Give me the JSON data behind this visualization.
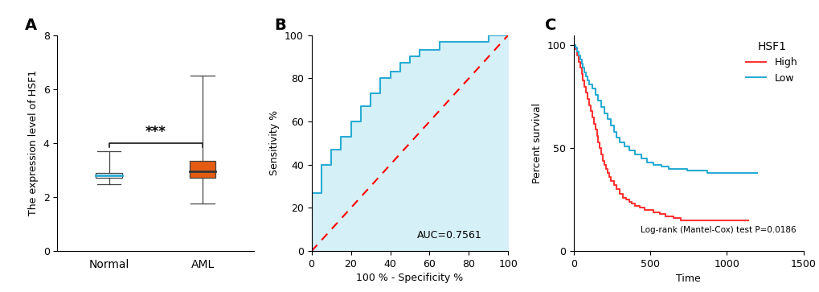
{
  "panel_a": {
    "label": "A",
    "ylabel": "The expression level of HSF1",
    "categories": [
      "Normal",
      "AML"
    ],
    "normal_box": {
      "median": 2.8,
      "q1": 2.72,
      "q3": 2.88,
      "whisker_low": 2.48,
      "whisker_high": 3.7,
      "color": "white",
      "medline_color": "#29ABD4"
    },
    "aml_box": {
      "median": 2.95,
      "q1": 2.72,
      "q3": 3.35,
      "whisker_low": 1.75,
      "whisker_high": 6.5,
      "color": "#E55B13",
      "medline_color": "#333333"
    },
    "ylim": [
      0,
      8
    ],
    "yticks": [
      0,
      2,
      4,
      6,
      8
    ],
    "sig_text": "***",
    "sig_y": 4.15,
    "bracket_y1": 3.85,
    "bracket_y2": 4.0
  },
  "panel_b": {
    "label": "B",
    "xlabel": "100 % - Specificity %",
    "ylabel": "Sensitivity %",
    "auc_text": "AUC=0.7561",
    "roc_x": [
      0,
      0,
      5,
      5,
      10,
      10,
      15,
      15,
      20,
      20,
      25,
      25,
      30,
      30,
      35,
      35,
      40,
      40,
      45,
      45,
      50,
      50,
      55,
      55,
      60,
      60,
      65,
      65,
      70,
      70,
      75,
      75,
      80,
      80,
      85,
      85,
      90,
      90,
      95,
      95,
      100,
      100
    ],
    "roc_y": [
      0,
      27,
      27,
      40,
      40,
      47,
      47,
      53,
      53,
      60,
      60,
      67,
      67,
      73,
      73,
      80,
      80,
      83,
      83,
      87,
      87,
      90,
      90,
      93,
      93,
      93,
      93,
      97,
      97,
      97,
      97,
      97,
      97,
      97,
      97,
      97,
      97,
      100,
      100,
      100,
      100,
      100
    ],
    "fill_color": "#D6F0F8",
    "line_color": "#29ABD4",
    "diag_color": "#FF0000",
    "xlim": [
      0,
      100
    ],
    "ylim": [
      0,
      100
    ],
    "xticks": [
      0,
      20,
      40,
      60,
      80,
      100
    ],
    "yticks": [
      0,
      20,
      40,
      60,
      80,
      100
    ]
  },
  "panel_c": {
    "label": "C",
    "xlabel": "Time",
    "ylabel": "Percent survival",
    "legend_title": "HSF1",
    "legend_high": "High",
    "legend_low": "Low",
    "high_color": "#FF3333",
    "low_color": "#29ABD4",
    "stat_text": "Log-rank (Mantel-Cox) test P=0.0186",
    "xlim": [
      0,
      1500
    ],
    "ylim": [
      0,
      105
    ],
    "xticks": [
      0,
      500,
      1000,
      1500
    ],
    "yticks": [
      0,
      50,
      100
    ],
    "high_x": [
      0,
      10,
      20,
      30,
      40,
      50,
      60,
      70,
      80,
      90,
      100,
      110,
      120,
      130,
      140,
      150,
      160,
      170,
      180,
      190,
      200,
      210,
      220,
      230,
      240,
      260,
      280,
      300,
      320,
      340,
      360,
      380,
      400,
      430,
      460,
      490,
      520,
      560,
      600,
      650,
      700,
      760,
      820,
      900,
      980,
      1060,
      1140
    ],
    "high_y": [
      100,
      98,
      95,
      92,
      89,
      86,
      83,
      80,
      77,
      74,
      71,
      68,
      65,
      62,
      59,
      56,
      53,
      50,
      47,
      44,
      42,
      40,
      38,
      36,
      34,
      32,
      30,
      28,
      26,
      25,
      24,
      23,
      22,
      21,
      20,
      20,
      19,
      18,
      17,
      16,
      15,
      15,
      15,
      15,
      15,
      15,
      15
    ],
    "low_x": [
      0,
      10,
      20,
      30,
      40,
      50,
      60,
      70,
      80,
      90,
      100,
      120,
      140,
      160,
      180,
      200,
      220,
      240,
      260,
      280,
      300,
      330,
      360,
      400,
      440,
      480,
      520,
      570,
      620,
      680,
      740,
      800,
      870,
      940,
      1020,
      1100,
      1180,
      1200
    ],
    "low_y": [
      100,
      99,
      97,
      95,
      93,
      91,
      89,
      87,
      85,
      83,
      81,
      79,
      76,
      73,
      70,
      67,
      64,
      61,
      58,
      55,
      53,
      51,
      49,
      47,
      45,
      43,
      42,
      41,
      40,
      40,
      39,
      39,
      38,
      38,
      38,
      38,
      38,
      38
    ]
  },
  "bg_color": "#FFFFFF",
  "text_color": "#000000"
}
